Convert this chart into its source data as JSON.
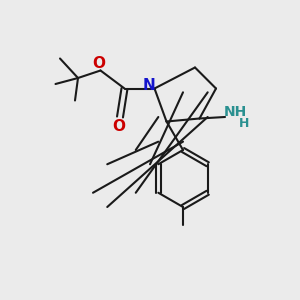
{
  "bg_color": "#ebebeb",
  "bond_color": "#1a1a1a",
  "bond_width": 1.5,
  "N_color": "#1414cc",
  "O_color": "#cc0000",
  "NH2_color": "#2a9090",
  "figsize": [
    3.0,
    3.0
  ],
  "dpi": 100,
  "xlim": [
    0,
    10
  ],
  "ylim": [
    0,
    10
  ]
}
